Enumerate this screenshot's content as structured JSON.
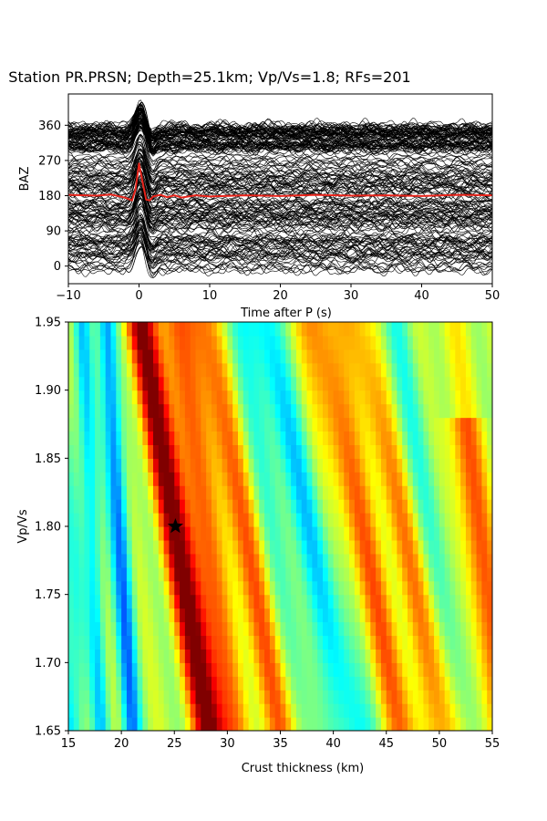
{
  "chart_data": [
    {
      "type": "line",
      "title": "Station PR.PRSN; Depth=25.1km; Vp/Vs=1.8; RFs=201",
      "xlabel": "Time after P (s)",
      "ylabel": "BAZ",
      "xlim": [
        -10,
        50
      ],
      "ylim": [
        -45,
        440
      ],
      "xticks": [
        "−10",
        "0",
        "10",
        "20",
        "30",
        "40",
        "50"
      ],
      "yticks": [
        "0",
        "90",
        "180",
        "270",
        "360"
      ],
      "trace_count": 201,
      "trace_color": "#000000",
      "series": [
        {
          "color": "#e8231a",
          "x": [
            -10,
            -6,
            -4,
            -2,
            -1,
            -0.5,
            0,
            0.5,
            1,
            1.5,
            2,
            3,
            4,
            5,
            6,
            8,
            10,
            15,
            20,
            25,
            30,
            35,
            40,
            45,
            50
          ],
          "y": [
            182,
            180,
            183,
            175,
            168,
            195,
            262,
            215,
            170,
            168,
            178,
            182,
            176,
            181,
            175,
            181,
            178,
            181,
            179,
            182,
            180,
            181,
            179,
            182,
            181
          ]
        }
      ]
    },
    {
      "type": "heatmap",
      "xlabel": "Crust thickness (km)",
      "ylabel": "Vp/Vs",
      "xlim": [
        15,
        55
      ],
      "ylim": [
        1.65,
        1.95
      ],
      "xticks": [
        "15",
        "20",
        "25",
        "30",
        "35",
        "40",
        "45",
        "50",
        "55"
      ],
      "yticks": [
        "1.65",
        "1.70",
        "1.75",
        "1.80",
        "1.85",
        "1.90",
        "1.95"
      ],
      "colormap": "jet",
      "best_fit": {
        "thickness": 25.1,
        "vpvs": 1.8
      }
    }
  ]
}
